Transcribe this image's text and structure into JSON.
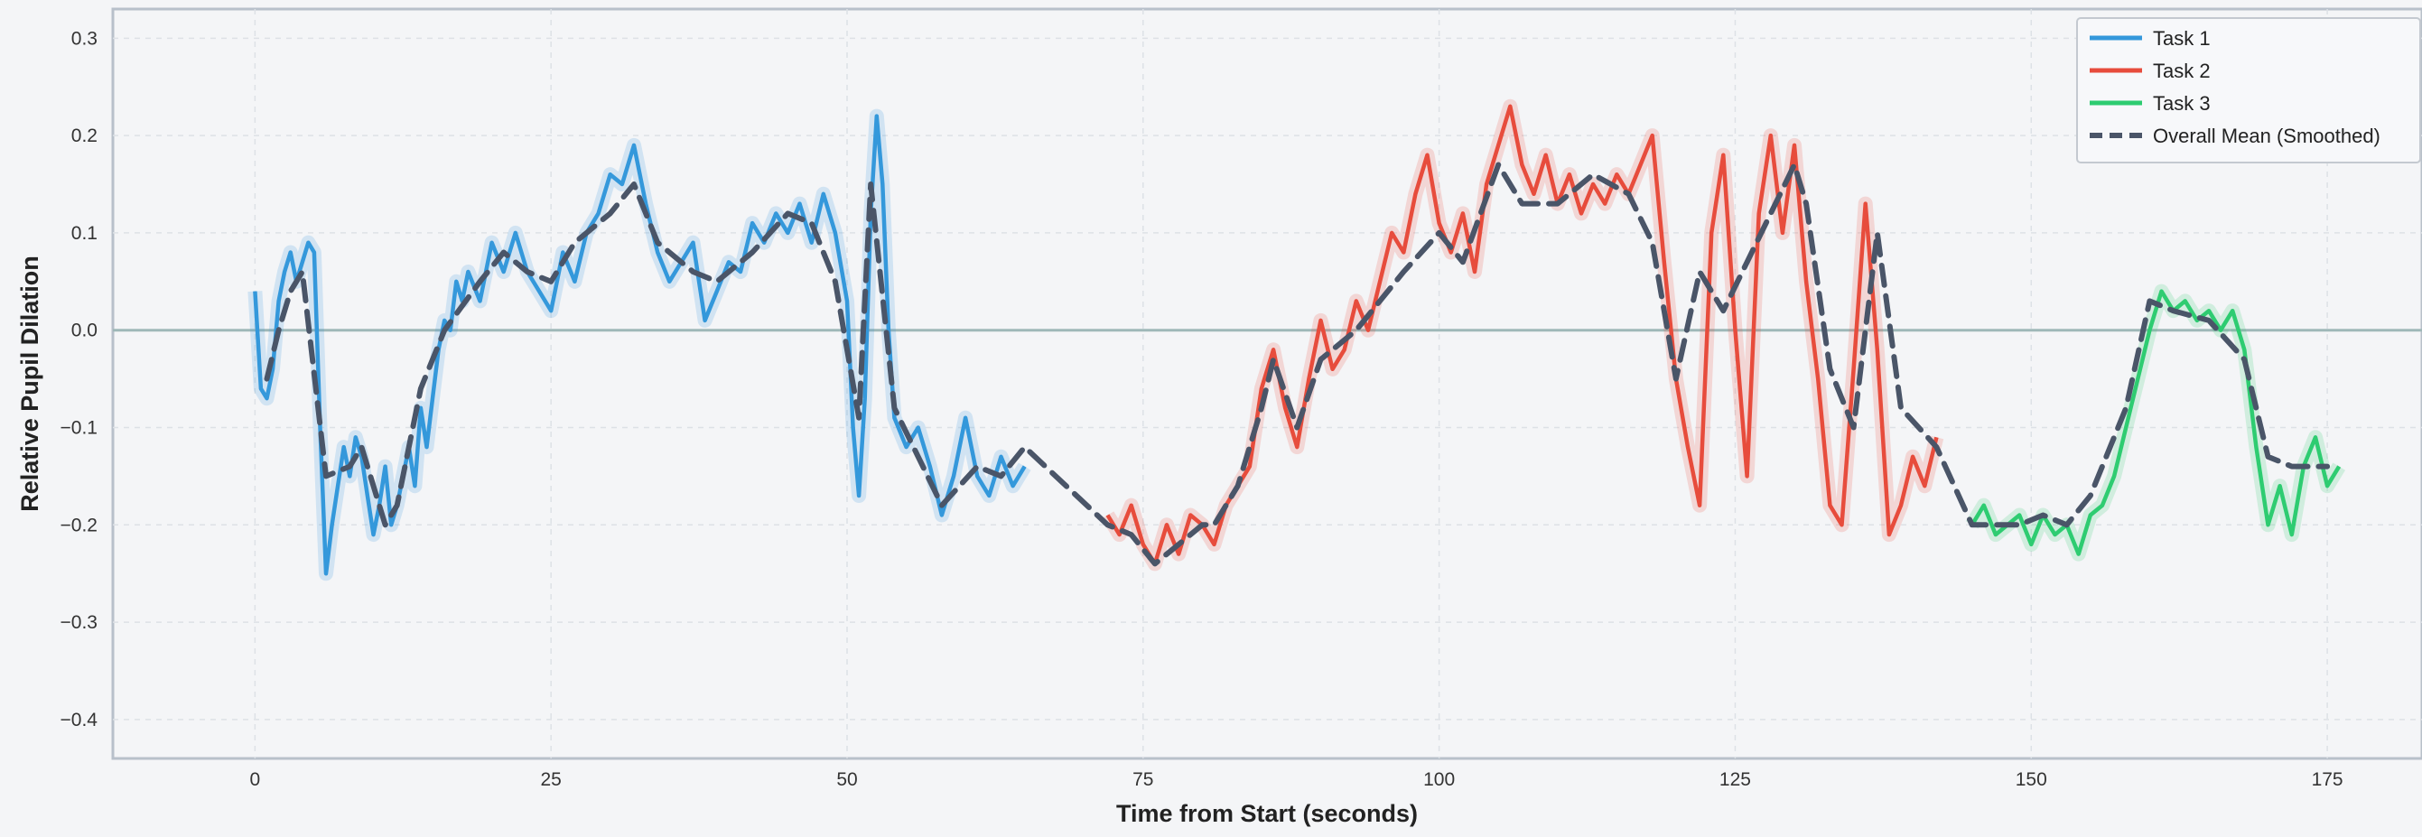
{
  "chart_data": {
    "type": "line",
    "title": "",
    "xlabel": "Time from Start (seconds)",
    "ylabel": "Relative Pupil Dilation",
    "xlim": [
      -12,
      183
    ],
    "ylim": [
      -0.44,
      0.33
    ],
    "x_ticks": [
      0,
      25,
      50,
      75,
      100,
      125,
      150,
      175
    ],
    "y_ticks": [
      -0.4,
      -0.3,
      -0.2,
      -0.1,
      0.0,
      0.1,
      0.2,
      0.3
    ],
    "x_tick_labels": [
      "0",
      "25",
      "50",
      "75",
      "100",
      "125",
      "150",
      "175"
    ],
    "y_tick_labels": [
      "−0.4",
      "−0.3",
      "−0.2",
      "−0.1",
      "0.0",
      "0.1",
      "0.2",
      "0.3"
    ],
    "grid": true,
    "reference_line_y": 0.0,
    "legend_position": "top-right",
    "series": [
      {
        "name": "Task 1",
        "color": "#3498db",
        "x": [
          0,
          0.5,
          1,
          1.5,
          2,
          2.5,
          3,
          3.5,
          4,
          4.5,
          5,
          5.5,
          6,
          6.5,
          7,
          7.5,
          8,
          8.5,
          9,
          9.5,
          10,
          10.5,
          11,
          11.5,
          12,
          12.5,
          13,
          13.5,
          14,
          14.5,
          15,
          15.5,
          16,
          16.5,
          17,
          17.5,
          18,
          19,
          20,
          21,
          22,
          23,
          24,
          25,
          26,
          27,
          28,
          29,
          30,
          31,
          32,
          33,
          34,
          35,
          36,
          37,
          38,
          39,
          40,
          41,
          42,
          43,
          44,
          45,
          46,
          47,
          48,
          49,
          50,
          50.5,
          51,
          51.5,
          52,
          52.5,
          53,
          53.5,
          54,
          55,
          56,
          57,
          58,
          59,
          60,
          61,
          62,
          63,
          64,
          65
        ],
        "y": [
          0.04,
          -0.06,
          -0.07,
          -0.04,
          0.03,
          0.06,
          0.08,
          0.05,
          0.07,
          0.09,
          0.08,
          -0.1,
          -0.25,
          -0.2,
          -0.16,
          -0.12,
          -0.15,
          -0.11,
          -0.13,
          -0.17,
          -0.21,
          -0.18,
          -0.14,
          -0.2,
          -0.18,
          -0.15,
          -0.12,
          -0.16,
          -0.08,
          -0.12,
          -0.07,
          -0.02,
          0.01,
          0.0,
          0.05,
          0.03,
          0.06,
          0.03,
          0.09,
          0.06,
          0.1,
          0.06,
          0.04,
          0.02,
          0.08,
          0.05,
          0.1,
          0.12,
          0.16,
          0.15,
          0.19,
          0.13,
          0.08,
          0.05,
          0.07,
          0.09,
          0.01,
          0.04,
          0.07,
          0.06,
          0.11,
          0.09,
          0.12,
          0.1,
          0.13,
          0.09,
          0.14,
          0.1,
          0.03,
          -0.1,
          -0.17,
          -0.07,
          0.12,
          0.22,
          0.15,
          0.0,
          -0.09,
          -0.12,
          -0.1,
          -0.14,
          -0.19,
          -0.15,
          -0.09,
          -0.15,
          -0.17,
          -0.13,
          -0.16,
          -0.14
        ]
      },
      {
        "name": "Task 2",
        "color": "#e74c3c",
        "x": [
          72,
          73,
          74,
          75,
          76,
          77,
          78,
          79,
          80,
          81,
          82,
          83,
          84,
          85,
          86,
          87,
          88,
          89,
          90,
          91,
          92,
          93,
          94,
          95,
          96,
          97,
          98,
          99,
          100,
          101,
          102,
          103,
          104,
          105,
          106,
          107,
          108,
          109,
          110,
          111,
          112,
          113,
          114,
          115,
          116,
          117,
          118,
          119,
          120,
          121,
          122,
          123,
          124,
          125,
          126,
          127,
          128,
          129,
          130,
          131,
          132,
          133,
          134,
          135,
          136,
          137,
          138,
          139,
          140,
          141,
          142
        ],
        "y": [
          -0.19,
          -0.21,
          -0.18,
          -0.22,
          -0.24,
          -0.2,
          -0.23,
          -0.19,
          -0.2,
          -0.22,
          -0.18,
          -0.16,
          -0.14,
          -0.06,
          -0.02,
          -0.08,
          -0.12,
          -0.05,
          0.01,
          -0.04,
          -0.02,
          0.03,
          0.0,
          0.05,
          0.1,
          0.08,
          0.14,
          0.18,
          0.11,
          0.08,
          0.12,
          0.06,
          0.15,
          0.19,
          0.23,
          0.17,
          0.14,
          0.18,
          0.13,
          0.16,
          0.12,
          0.15,
          0.13,
          0.16,
          0.14,
          0.17,
          0.2,
          0.07,
          -0.05,
          -0.12,
          -0.18,
          0.1,
          0.18,
          0.0,
          -0.15,
          0.12,
          0.2,
          0.1,
          0.19,
          0.05,
          -0.05,
          -0.18,
          -0.2,
          -0.04,
          0.13,
          -0.02,
          -0.21,
          -0.18,
          -0.13,
          -0.16,
          -0.11
        ]
      },
      {
        "name": "Task 3",
        "color": "#2ecc71",
        "x": [
          145,
          146,
          147,
          148,
          149,
          150,
          151,
          152,
          153,
          154,
          155,
          156,
          157,
          158,
          159,
          160,
          161,
          162,
          163,
          164,
          165,
          166,
          167,
          168,
          169,
          170,
          171,
          172,
          173,
          174,
          175,
          176
        ],
        "y": [
          -0.2,
          -0.18,
          -0.21,
          -0.2,
          -0.19,
          -0.22,
          -0.19,
          -0.21,
          -0.2,
          -0.23,
          -0.19,
          -0.18,
          -0.15,
          -0.1,
          -0.05,
          0.0,
          0.04,
          0.02,
          0.03,
          0.01,
          0.02,
          0.0,
          0.02,
          -0.02,
          -0.12,
          -0.2,
          -0.16,
          -0.21,
          -0.14,
          -0.11,
          -0.16,
          -0.14
        ]
      },
      {
        "name": "Overall Mean (Smoothed)",
        "color": "#4a5568",
        "dashed": true,
        "x": [
          1,
          2,
          3,
          4,
          6,
          8,
          9,
          11,
          12,
          14,
          16,
          19,
          21,
          23,
          25,
          27,
          30,
          32,
          34,
          37,
          39,
          42,
          45,
          47,
          49,
          51,
          52,
          54,
          56,
          58,
          61,
          63,
          65,
          72,
          74,
          76,
          78,
          80,
          81,
          83,
          84,
          85,
          86,
          88,
          90,
          93,
          97,
          100,
          102,
          105,
          107,
          110,
          113,
          116,
          118,
          120,
          122,
          124,
          126,
          128,
          130,
          131,
          133,
          135,
          137,
          139,
          142,
          145,
          147,
          149,
          151,
          153,
          155,
          158,
          160,
          162,
          165,
          168,
          170,
          172,
          175
        ],
        "y": [
          -0.05,
          0.0,
          0.04,
          0.06,
          -0.15,
          -0.14,
          -0.12,
          -0.2,
          -0.18,
          -0.06,
          0.0,
          0.05,
          0.08,
          0.06,
          0.05,
          0.09,
          0.12,
          0.15,
          0.09,
          0.06,
          0.05,
          0.08,
          0.12,
          0.11,
          0.05,
          -0.09,
          0.15,
          -0.08,
          -0.13,
          -0.18,
          -0.14,
          -0.15,
          -0.12,
          -0.2,
          -0.21,
          -0.24,
          -0.22,
          -0.2,
          -0.2,
          -0.16,
          -0.12,
          -0.08,
          -0.03,
          -0.1,
          -0.03,
          0.0,
          0.06,
          0.1,
          0.07,
          0.17,
          0.13,
          0.13,
          0.16,
          0.14,
          0.09,
          -0.05,
          0.06,
          0.02,
          0.07,
          0.12,
          0.17,
          0.13,
          -0.04,
          -0.1,
          0.1,
          -0.08,
          -0.12,
          -0.2,
          -0.2,
          -0.2,
          -0.19,
          -0.2,
          -0.17,
          -0.08,
          0.03,
          0.02,
          0.01,
          -0.03,
          -0.13,
          -0.14,
          -0.14
        ]
      }
    ]
  }
}
